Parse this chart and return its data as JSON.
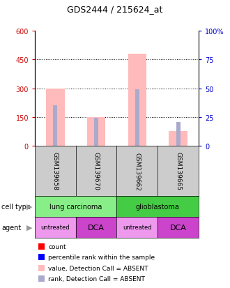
{
  "title": "GDS2444 / 215624_at",
  "samples": [
    "GSM139658",
    "GSM139670",
    "GSM139662",
    "GSM139665"
  ],
  "value_bars": [
    300,
    150,
    480,
    75
  ],
  "rank_bars": [
    210,
    145,
    295,
    125
  ],
  "ylim_left": [
    0,
    600
  ],
  "ylim_right": [
    0,
    100
  ],
  "yticks_left": [
    0,
    150,
    300,
    450,
    600
  ],
  "yticks_right": [
    0,
    25,
    50,
    75,
    100
  ],
  "ytick_labels_left": [
    "0",
    "150",
    "300",
    "450",
    "600"
  ],
  "ytick_labels_right": [
    "0",
    "25",
    "50",
    "75",
    "100%"
  ],
  "sample_bg_color": "#cccccc",
  "value_bar_color": "#ffbbbb",
  "rank_bar_color": "#aaaacc",
  "left_tick_color": "#cc0000",
  "right_tick_color": "#0000cc",
  "cell_info": [
    {
      "label": "lung carcinoma",
      "start": 0,
      "end": 2,
      "color": "#88ee88"
    },
    {
      "label": "glioblastoma",
      "start": 2,
      "end": 4,
      "color": "#44cc44"
    }
  ],
  "agents": [
    "untreated",
    "DCA",
    "untreated",
    "DCA"
  ],
  "agent_colors": {
    "untreated": "#ee99ee",
    "DCA": "#cc44cc"
  },
  "legend_items": [
    {
      "color": "#ff0000",
      "label": "count"
    },
    {
      "color": "#0000ff",
      "label": "percentile rank within the sample"
    },
    {
      "color": "#ffbbbb",
      "label": "value, Detection Call = ABSENT"
    },
    {
      "color": "#aaaacc",
      "label": "rank, Detection Call = ABSENT"
    }
  ]
}
